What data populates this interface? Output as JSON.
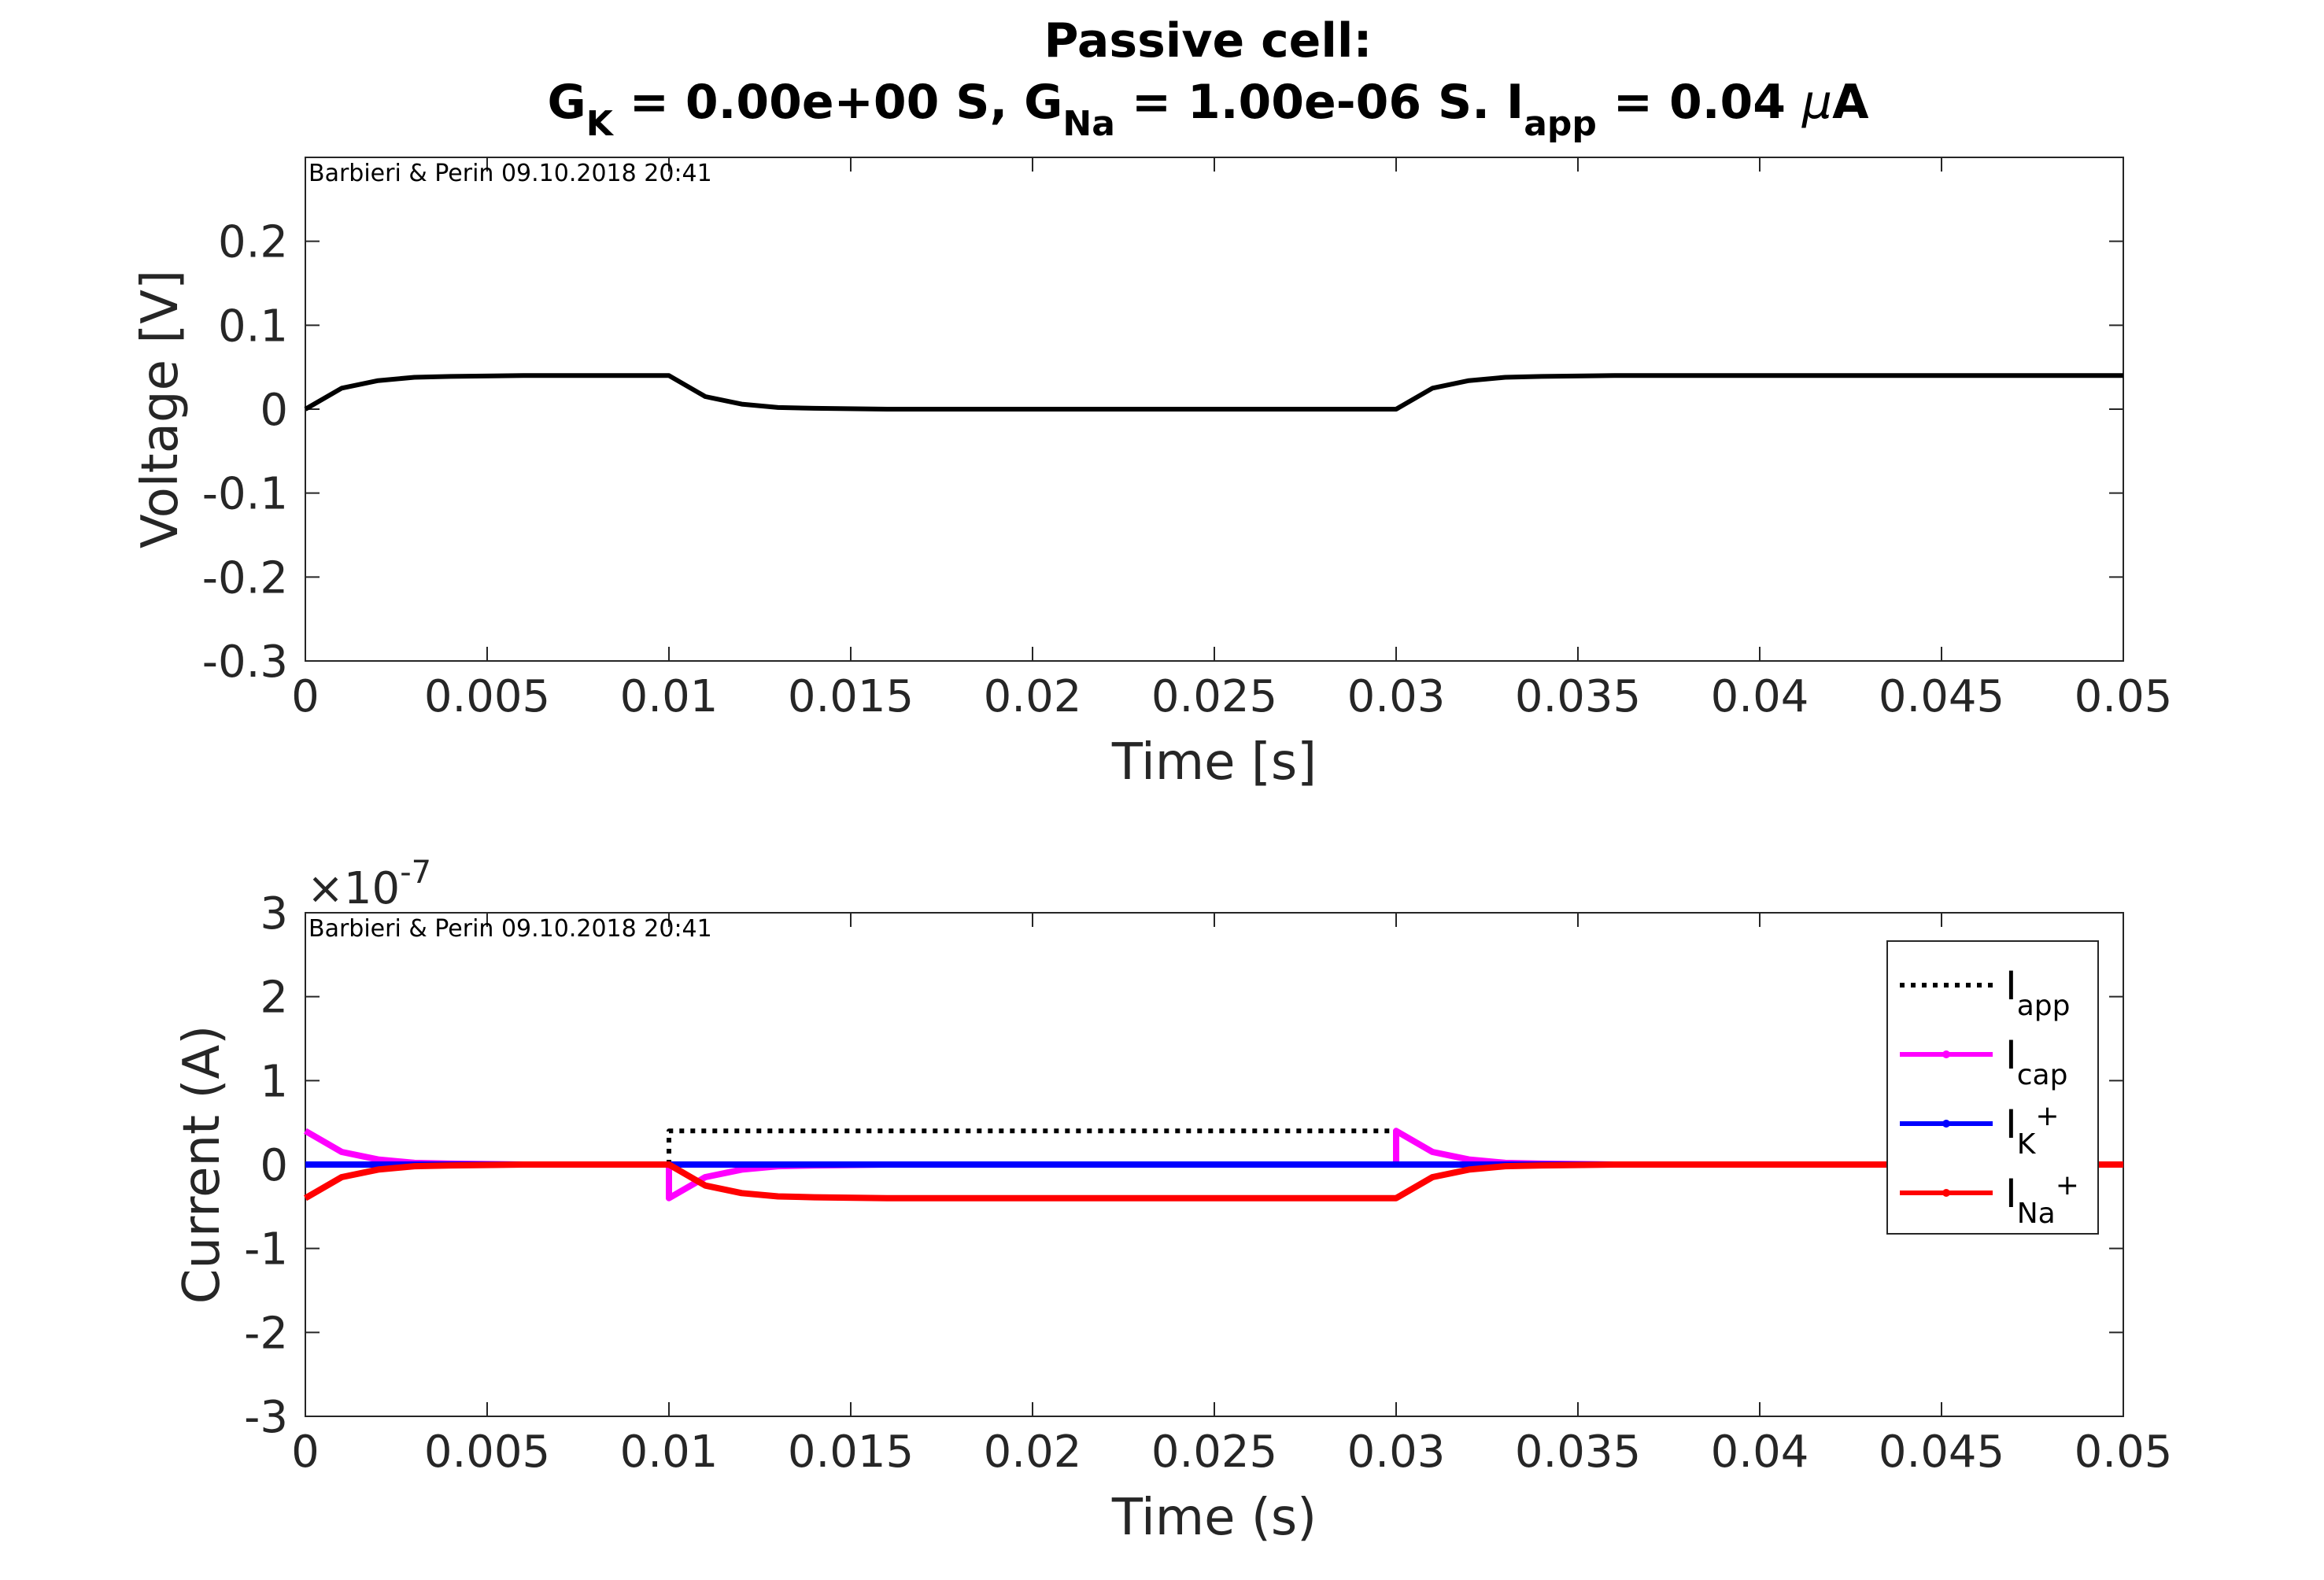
{
  "title": {
    "line1": "Passive cell:",
    "line2": {
      "g": "G",
      "k_sub": "K",
      "k_eq": " = 0.00e+00 S, ",
      "g2": "G",
      "na_sub": "Na",
      "na_eq": " = 1.00e-06 S. ",
      "i": "I",
      "app_sub": "app",
      "app_eq": " = 0.04 ",
      "mu": "μ",
      "unit": "A"
    }
  },
  "chart_data": [
    {
      "type": "line",
      "stamp": "Barbieri & Perin 09.10.2018 20:41",
      "xlabel": "Time [s]",
      "ylabel": "Voltage [V]",
      "xlim": [
        0,
        0.05
      ],
      "ylim": [
        -0.3,
        0.3
      ],
      "xticks": [
        0,
        0.005,
        0.01,
        0.015,
        0.02,
        0.025,
        0.03,
        0.035,
        0.04,
        0.045,
        0.05
      ],
      "xtick_labels": [
        "0",
        "0.005",
        "0.01",
        "0.015",
        "0.02",
        "0.025",
        "0.03",
        "0.035",
        "0.04",
        "0.045",
        "0.05"
      ],
      "yticks": [
        -0.3,
        -0.2,
        -0.1,
        0,
        0.1,
        0.2
      ],
      "ytick_labels": [
        "-0.3",
        "-0.2",
        "-0.1",
        "0",
        "0.1",
        "0.2"
      ],
      "grid": false,
      "series": [
        {
          "color": "#000000",
          "x": [
            0,
            0.001,
            0.002,
            0.003,
            0.004,
            0.006,
            0.008,
            0.01,
            0.011,
            0.012,
            0.013,
            0.014,
            0.016,
            0.02,
            0.025,
            0.03,
            0.031,
            0.032,
            0.033,
            0.034,
            0.036,
            0.04,
            0.045,
            0.05
          ],
          "y": [
            0,
            0.025,
            0.034,
            0.038,
            0.039,
            0.04,
            0.04,
            0.04,
            0.015,
            0.006,
            0.002,
            0.001,
            0,
            0,
            0,
            0,
            0.025,
            0.034,
            0.038,
            0.039,
            0.04,
            0.04,
            0.04,
            0.04
          ]
        }
      ]
    },
    {
      "type": "line",
      "stamp": "Barbieri & Perin 09.10.2018 20:41",
      "xlabel": "Time (s)",
      "ylabel": "Current (A)",
      "exponent": {
        "times": "×10",
        "power": "-7"
      },
      "xlim": [
        0,
        0.05
      ],
      "ylim": [
        -3,
        3
      ],
      "xticks": [
        0,
        0.005,
        0.01,
        0.015,
        0.02,
        0.025,
        0.03,
        0.035,
        0.04,
        0.045,
        0.05
      ],
      "xtick_labels": [
        "0",
        "0.005",
        "0.01",
        "0.015",
        "0.02",
        "0.025",
        "0.03",
        "0.035",
        "0.04",
        "0.045",
        "0.05"
      ],
      "yticks": [
        -3,
        -2,
        -1,
        0,
        1,
        2,
        3
      ],
      "ytick_labels": [
        "-3",
        "-2",
        "-1",
        "0",
        "1",
        "2",
        "3"
      ],
      "grid": false,
      "legend_position": "top-right",
      "series": [
        {
          "name": "I_app",
          "legend": {
            "main": "I",
            "sub": "app",
            "sup": ""
          },
          "color": "#000000",
          "style": "dotted",
          "x": [
            0,
            0.01,
            0.01,
            0.03,
            0.03,
            0.05
          ],
          "y": [
            0,
            0,
            0.4,
            0.4,
            0,
            0
          ]
        },
        {
          "name": "I_cap",
          "legend": {
            "main": "I",
            "sub": "cap",
            "sup": ""
          },
          "color": "#ff00ff",
          "style": "solid-markers",
          "x": [
            0,
            0.001,
            0.002,
            0.003,
            0.004,
            0.006,
            0.008,
            0.01,
            0.01,
            0.011,
            0.012,
            0.013,
            0.014,
            0.016,
            0.02,
            0.025,
            0.03,
            0.03,
            0.031,
            0.032,
            0.033,
            0.034,
            0.036,
            0.04,
            0.045,
            0.05
          ],
          "y": [
            0.4,
            0.15,
            0.06,
            0.02,
            0.01,
            0,
            0,
            0,
            -0.4,
            -0.15,
            -0.06,
            -0.02,
            -0.01,
            0,
            0,
            0,
            0,
            0.4,
            0.15,
            0.06,
            0.02,
            0.01,
            0,
            0,
            0,
            0
          ]
        },
        {
          "name": "I_K+",
          "legend": {
            "main": "I",
            "sub": "K",
            "sup": "+"
          },
          "color": "#0000ff",
          "style": "solid-markers",
          "x": [
            0,
            0.05
          ],
          "y": [
            0,
            0
          ]
        },
        {
          "name": "I_Na+",
          "legend": {
            "main": "I",
            "sub": "Na",
            "sup": "+"
          },
          "color": "#ff0000",
          "style": "solid-markers",
          "x": [
            0,
            0.001,
            0.002,
            0.003,
            0.004,
            0.006,
            0.008,
            0.01,
            0.011,
            0.012,
            0.013,
            0.014,
            0.016,
            0.02,
            0.025,
            0.03,
            0.031,
            0.032,
            0.033,
            0.034,
            0.036,
            0.04,
            0.045,
            0.05
          ],
          "y": [
            -0.4,
            -0.15,
            -0.06,
            -0.02,
            -0.01,
            0,
            0,
            0,
            -0.25,
            -0.34,
            -0.38,
            -0.39,
            -0.4,
            -0.4,
            -0.4,
            -0.4,
            -0.15,
            -0.06,
            -0.02,
            -0.01,
            0,
            0,
            0,
            0
          ]
        }
      ]
    }
  ]
}
